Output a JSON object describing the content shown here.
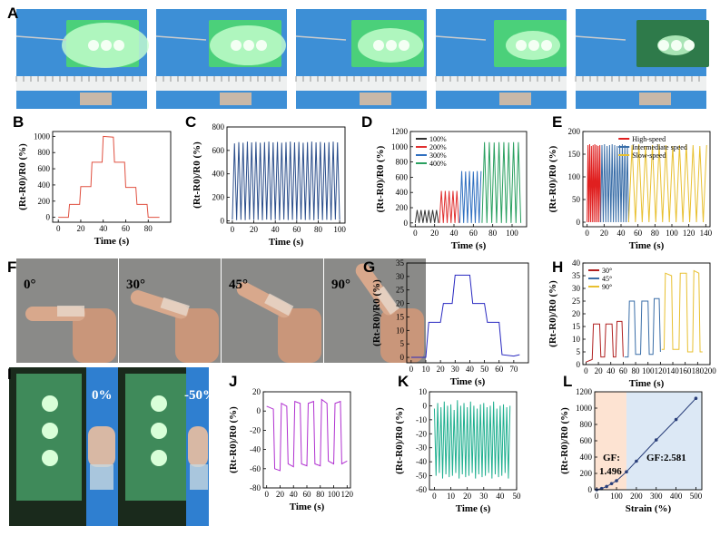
{
  "panel_labels": [
    "A",
    "B",
    "C",
    "D",
    "E",
    "F",
    "G",
    "H",
    "I",
    "J",
    "K",
    "L"
  ],
  "photo_labels": {
    "F": [
      "0°",
      "30°",
      "45°",
      "90°"
    ],
    "I": [
      "0%",
      "-50%"
    ]
  },
  "chart_data": [
    {
      "type": "line",
      "xlabel": "Time (s)",
      "ylabel": "(Rt-R0)/R0 (%)",
      "xlim": [
        -5,
        100
      ],
      "ylim": [
        -60,
        1060
      ],
      "xticks": [
        0,
        20,
        40,
        60,
        80
      ],
      "yticks": [
        0,
        200,
        400,
        600,
        800,
        1000
      ],
      "series": [
        {
          "color": "#e05040",
          "x": [
            0,
            9,
            10,
            19,
            20,
            29,
            30,
            39,
            40,
            49,
            50,
            59,
            60,
            69,
            70,
            79,
            80,
            90
          ],
          "values": [
            0,
            0,
            160,
            160,
            380,
            380,
            680,
            680,
            1000,
            990,
            680,
            680,
            370,
            370,
            160,
            160,
            0,
            0
          ]
        }
      ]
    },
    {
      "type": "line",
      "xlabel": "Time (s)",
      "ylabel": "(Rt-R0)/R0 (%)",
      "xlim": [
        -5,
        105
      ],
      "ylim": [
        -20,
        800
      ],
      "xticks": [
        0,
        20,
        40,
        60,
        80,
        100
      ],
      "yticks": [
        0,
        200,
        400,
        600,
        800
      ],
      "series": [
        {
          "color": "#2c4f8c",
          "x": [
            0,
            2,
            4,
            6,
            8,
            10,
            12,
            14,
            16,
            18,
            20,
            22,
            24,
            26,
            28,
            30,
            32,
            34,
            36,
            38,
            40,
            42,
            44,
            46,
            48,
            50,
            52,
            54,
            56,
            58,
            60,
            62,
            64,
            66,
            68,
            70,
            72,
            74,
            76,
            78,
            80,
            82,
            84,
            86,
            88,
            90,
            92,
            94,
            96,
            98,
            100
          ],
          "values": [
            10,
            660,
            5,
            670,
            8,
            665,
            5,
            675,
            10,
            668,
            6,
            672,
            8,
            665,
            5,
            670,
            10,
            675,
            6,
            668,
            8,
            672,
            5,
            665,
            10,
            670,
            6,
            675,
            8,
            668,
            5,
            672,
            10,
            665,
            6,
            670,
            8,
            675,
            5,
            668,
            10,
            672,
            6,
            665,
            8,
            670,
            5,
            675,
            10,
            668,
            6
          ]
        }
      ]
    },
    {
      "type": "line",
      "xlabel": "Time (s)",
      "ylabel": "(Rt-R0)/R0 (%)",
      "xlim": [
        -5,
        115
      ],
      "ylim": [
        -50,
        1200
      ],
      "xticks": [
        0,
        20,
        40,
        60,
        80,
        100
      ],
      "yticks": [
        0,
        200,
        400,
        600,
        800,
        1000,
        1200
      ],
      "legend": "upper left",
      "series": [
        {
          "name": "100%",
          "color": "#333333",
          "x": [
            0,
            2,
            4,
            6,
            8,
            10,
            12,
            14,
            16,
            18,
            20,
            22,
            24
          ],
          "values": [
            0,
            170,
            0,
            170,
            0,
            170,
            0,
            170,
            0,
            170,
            0,
            170,
            0
          ]
        },
        {
          "name": "200%",
          "color": "#e03030",
          "x": [
            25,
            27,
            29,
            31,
            33,
            35,
            37,
            39,
            41,
            43,
            45
          ],
          "values": [
            0,
            420,
            0,
            420,
            0,
            420,
            0,
            420,
            0,
            420,
            0
          ]
        },
        {
          "name": "300%",
          "color": "#2f6fc0",
          "x": [
            46,
            48,
            50,
            52,
            54,
            56,
            58,
            60,
            62,
            64,
            66,
            68
          ],
          "values": [
            0,
            680,
            0,
            675,
            0,
            680,
            0,
            675,
            0,
            680,
            0,
            680
          ]
        },
        {
          "name": "400%",
          "color": "#2aa060",
          "x": [
            69,
            71.5,
            74,
            76.5,
            79,
            81.5,
            84,
            86.5,
            89,
            91.5,
            94,
            96.5,
            99,
            101.5,
            104,
            106.5,
            109
          ],
          "values": [
            0,
            1060,
            0,
            1060,
            0,
            1055,
            0,
            1060,
            0,
            1060,
            0,
            1055,
            0,
            1060,
            0,
            1060,
            0
          ]
        }
      ]
    },
    {
      "type": "line",
      "xlabel": "Time (s)",
      "ylabel": "(Rt-R0)/R0 (%)",
      "xlim": [
        -5,
        145
      ],
      "ylim": [
        -10,
        200
      ],
      "xticks": [
        0,
        20,
        40,
        60,
        80,
        100,
        120,
        140
      ],
      "yticks": [
        0,
        50,
        100,
        150,
        200
      ],
      "legend": "upper center",
      "series": [
        {
          "name": "High-speed",
          "color": "#e02020",
          "x": [
            0,
            1,
            2,
            3,
            4,
            5,
            6,
            7,
            8,
            9,
            10,
            11,
            12,
            13,
            14,
            15,
            16
          ],
          "values": [
            0,
            170,
            0,
            172,
            0,
            168,
            0,
            170,
            0,
            172,
            0,
            170,
            0,
            168,
            0,
            170,
            0
          ]
        },
        {
          "name": "Intermediate speed",
          "color": "#3a6ea8",
          "x": [
            16,
            17.5,
            19,
            20.5,
            22,
            23.5,
            25,
            26.5,
            28,
            29.5,
            31,
            32.5,
            34,
            35.5,
            37,
            38.5,
            40,
            41.5,
            43,
            44.5,
            46,
            47.5,
            49
          ],
          "values": [
            0,
            170,
            0,
            172,
            0,
            168,
            0,
            170,
            0,
            172,
            0,
            170,
            0,
            168,
            0,
            170,
            0,
            172,
            0,
            170,
            0,
            168,
            0
          ]
        },
        {
          "name": "Slow-speed",
          "color": "#e8c030",
          "x": [
            49,
            53,
            57,
            61,
            65,
            69,
            73,
            77,
            81,
            85,
            89,
            93,
            97,
            101,
            105,
            109,
            113,
            117,
            121,
            125,
            129,
            133,
            137,
            141
          ],
          "values": [
            0,
            170,
            0,
            172,
            0,
            168,
            0,
            170,
            0,
            172,
            0,
            170,
            0,
            168,
            0,
            170,
            0,
            172,
            0,
            170,
            0,
            168,
            0,
            170
          ]
        }
      ]
    },
    {
      "type": "line",
      "xlabel": "Time (s)",
      "ylabel": "(Rt-R0)/R0 (%)",
      "xlim": [
        -3,
        80
      ],
      "ylim": [
        -2,
        35
      ],
      "xticks": [
        0,
        10,
        20,
        30,
        40,
        50,
        60,
        70
      ],
      "yticks": [
        0,
        5,
        10,
        15,
        20,
        25,
        30,
        35
      ],
      "series": [
        {
          "color": "#2828c0",
          "x": [
            0,
            10,
            12,
            20,
            22,
            28,
            30,
            40,
            42,
            50,
            52,
            60,
            62,
            70,
            74
          ],
          "values": [
            0,
            0,
            13,
            13,
            20,
            20,
            30.5,
            30.5,
            20,
            20,
            13,
            13,
            1,
            0.5,
            1
          ]
        }
      ]
    },
    {
      "type": "line",
      "xlabel": "Time (s)",
      "ylabel": "(Rt-R0)/R0 (%)",
      "xlim": [
        -5,
        200
      ],
      "ylim": [
        0,
        40
      ],
      "xticks": [
        0,
        20,
        40,
        60,
        80,
        100,
        120,
        140,
        160,
        180,
        200
      ],
      "yticks": [
        0,
        5,
        10,
        15,
        20,
        25,
        30,
        35,
        40
      ],
      "legend": "upper left",
      "series": [
        {
          "name": "30°",
          "color": "#b02020",
          "x": [
            0,
            10,
            12,
            22,
            24,
            30,
            32,
            42,
            44,
            48,
            50,
            58,
            60
          ],
          "values": [
            1,
            2,
            16,
            16,
            3,
            3,
            16,
            16,
            3,
            3,
            17,
            17,
            3
          ]
        },
        {
          "name": "45°",
          "color": "#3a6ea8",
          "x": [
            62,
            68,
            70,
            78,
            80,
            88,
            90,
            100,
            102,
            108,
            110,
            118,
            120
          ],
          "values": [
            3,
            3,
            25,
            25,
            4,
            4,
            25,
            25,
            4,
            4,
            26,
            26,
            5
          ]
        },
        {
          "name": "90°",
          "color": "#e8c030",
          "x": [
            122,
            126,
            128,
            138,
            140,
            150,
            152,
            162,
            164,
            172,
            174,
            182,
            184,
            188
          ],
          "values": [
            6,
            6,
            36,
            35,
            6,
            6,
            36,
            36,
            5,
            5,
            37,
            36,
            5,
            5
          ]
        }
      ]
    },
    {
      "type": "line",
      "xlabel": "Time (s)",
      "ylabel": "(Rt-R0)/R0 (%)",
      "xlim": [
        -5,
        125
      ],
      "ylim": [
        -80,
        20
      ],
      "xticks": [
        0,
        20,
        40,
        60,
        80,
        100,
        120
      ],
      "yticks": [
        -80,
        -60,
        -40,
        -20,
        0,
        20
      ],
      "series": [
        {
          "color": "#b030d0",
          "x": [
            0,
            10,
            12,
            20,
            22,
            30,
            32,
            40,
            42,
            50,
            52,
            60,
            62,
            70,
            72,
            80,
            82,
            90,
            92,
            100,
            102,
            110,
            112,
            120
          ],
          "values": [
            5,
            2,
            -60,
            -62,
            8,
            5,
            -55,
            -58,
            10,
            8,
            -55,
            -57,
            8,
            10,
            -55,
            -57,
            12,
            8,
            -52,
            -55,
            8,
            10,
            -55,
            -52
          ]
        }
      ]
    },
    {
      "type": "line",
      "xlabel": "Time (s)",
      "ylabel": "(Rt-R0)/R0 (%)",
      "xlim": [
        -3,
        50
      ],
      "ylim": [
        -60,
        10
      ],
      "xticks": [
        0,
        10,
        20,
        30,
        40,
        50
      ],
      "yticks": [
        -60,
        -50,
        -40,
        -30,
        -20,
        -10,
        0,
        10
      ],
      "series": [
        {
          "color": "#20b090",
          "x": [
            0,
            1,
            2,
            3,
            4,
            5,
            6,
            7,
            8,
            9,
            10,
            11,
            12,
            13,
            14,
            15,
            16,
            17,
            18,
            19,
            20,
            21,
            22,
            23,
            24,
            25,
            26,
            27,
            28,
            29,
            30,
            31,
            32,
            33,
            34,
            35,
            36,
            37,
            38,
            39,
            40,
            41,
            42,
            43,
            44,
            45,
            46
          ],
          "values": [
            -2,
            -50,
            2,
            -48,
            -1,
            -52,
            3,
            -49,
            0,
            -51,
            1,
            -50,
            -3,
            -48,
            4,
            -52,
            0,
            -49,
            2,
            -51,
            -1,
            -50,
            3,
            -48,
            0,
            -52,
            -2,
            -49,
            1,
            -51,
            2,
            -50,
            -1,
            -48,
            0,
            -52,
            3,
            -49,
            -2,
            -51,
            0,
            -50,
            1,
            -48,
            -1,
            -52,
            0
          ]
        }
      ]
    },
    {
      "type": "line",
      "markers": true,
      "xlabel": "Strain (%)",
      "ylabel": "(Rt-R0)/R0 (%)",
      "xlim": [
        -10,
        530
      ],
      "ylim": [
        0,
        1200
      ],
      "xticks": [
        0,
        100,
        200,
        300,
        400,
        500
      ],
      "yticks": [
        0,
        200,
        400,
        600,
        800,
        1000,
        1200
      ],
      "regions": [
        {
          "from": -10,
          "to": 150,
          "color": "#fde3d2"
        },
        {
          "from": 150,
          "to": 530,
          "color": "#dce8f5"
        }
      ],
      "annotations": [
        "GF:",
        "1.496",
        "GF:2.581"
      ],
      "series": [
        {
          "color": "#2a3f7a",
          "x": [
            0,
            25,
            50,
            75,
            100,
            150,
            200,
            300,
            400,
            500
          ],
          "values": [
            0,
            15,
            40,
            75,
            110,
            220,
            350,
            610,
            860,
            1120
          ]
        }
      ]
    }
  ]
}
